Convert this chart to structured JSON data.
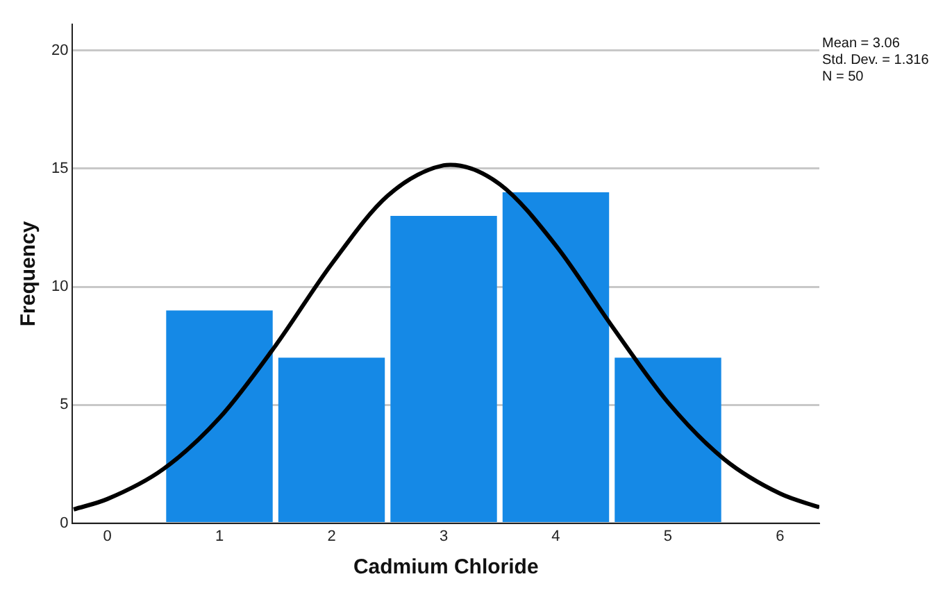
{
  "chart_data": {
    "type": "histogram",
    "xlabel": "Cadmium Chloride",
    "ylabel": "Frequency",
    "bins": [
      0.5,
      1.5,
      2.5,
      3.5,
      4.5,
      5.5
    ],
    "values": [
      9,
      7,
      13,
      14,
      7
    ],
    "color": "#1589e6",
    "series": [
      {
        "type": "line",
        "color": "#000000",
        "x": [
          -0.3,
          0,
          0.5,
          1,
          1.5,
          2,
          2.5,
          3,
          3.06,
          3.5,
          4,
          4.5,
          5,
          5.5,
          6,
          6.35
        ],
        "values": [
          0.58,
          1.02,
          2.29,
          4.45,
          7.51,
          10.96,
          13.85,
          15.14,
          15.16,
          14.34,
          11.75,
          8.34,
          5.11,
          2.71,
          1.25,
          0.67
        ]
      }
    ],
    "xlim": [
      -0.31,
      6.35
    ],
    "xticks": [
      0,
      1,
      2,
      3,
      4,
      5,
      6
    ],
    "ylim": [
      0,
      21.1
    ],
    "yticks": [
      0,
      5,
      10,
      15,
      20
    ],
    "grid": "y",
    "annotations": [
      "Mean = 3.06",
      "Std. Dev. = 1.316",
      "N = 50"
    ]
  }
}
